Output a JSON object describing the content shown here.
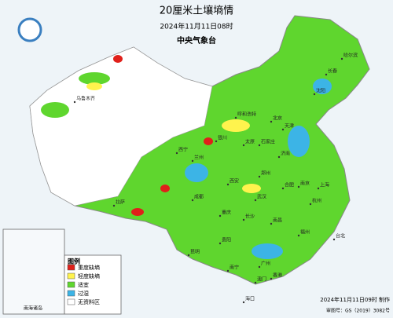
{
  "header": {
    "title": "20厘米土壤墒情",
    "datetime": "2024年11月11日08时",
    "agency": "中央气象台"
  },
  "legend": {
    "title": "图例",
    "items": [
      {
        "label": "重度缺墒",
        "color": "#e0201a"
      },
      {
        "label": "轻度缺墒",
        "color": "#fff34d"
      },
      {
        "label": "适宜",
        "color": "#5fd62e"
      },
      {
        "label": "过湿",
        "color": "#3cb4e6"
      },
      {
        "label": "无资料区",
        "color": "#ffffff"
      }
    ]
  },
  "inset": {
    "label": "南海诸岛"
  },
  "cities": [
    {
      "name": "乌鲁木齐"
    },
    {
      "name": "拉萨"
    },
    {
      "name": "西宁"
    },
    {
      "name": "兰州"
    },
    {
      "name": "银川"
    },
    {
      "name": "呼和浩特"
    },
    {
      "name": "北京"
    },
    {
      "name": "天津"
    },
    {
      "name": "太原"
    },
    {
      "name": "石家庄"
    },
    {
      "name": "济南"
    },
    {
      "name": "郑州"
    },
    {
      "name": "西安"
    },
    {
      "name": "成都"
    },
    {
      "name": "重庆"
    },
    {
      "name": "武汉"
    },
    {
      "name": "合肥"
    },
    {
      "name": "南京"
    },
    {
      "name": "上海"
    },
    {
      "name": "杭州"
    },
    {
      "name": "长沙"
    },
    {
      "name": "南昌"
    },
    {
      "name": "福州"
    },
    {
      "name": "贵阳"
    },
    {
      "name": "昆明"
    },
    {
      "name": "南宁"
    },
    {
      "name": "广州"
    },
    {
      "name": "台北"
    },
    {
      "name": "香港"
    },
    {
      "name": "澳门"
    },
    {
      "name": "海口"
    },
    {
      "name": "沈阳"
    },
    {
      "name": "长春"
    },
    {
      "name": "哈尔滨"
    }
  ],
  "footer": {
    "made": "2024年11月11日09时 制作",
    "approval": "审图号：GS（2019）3082号"
  }
}
